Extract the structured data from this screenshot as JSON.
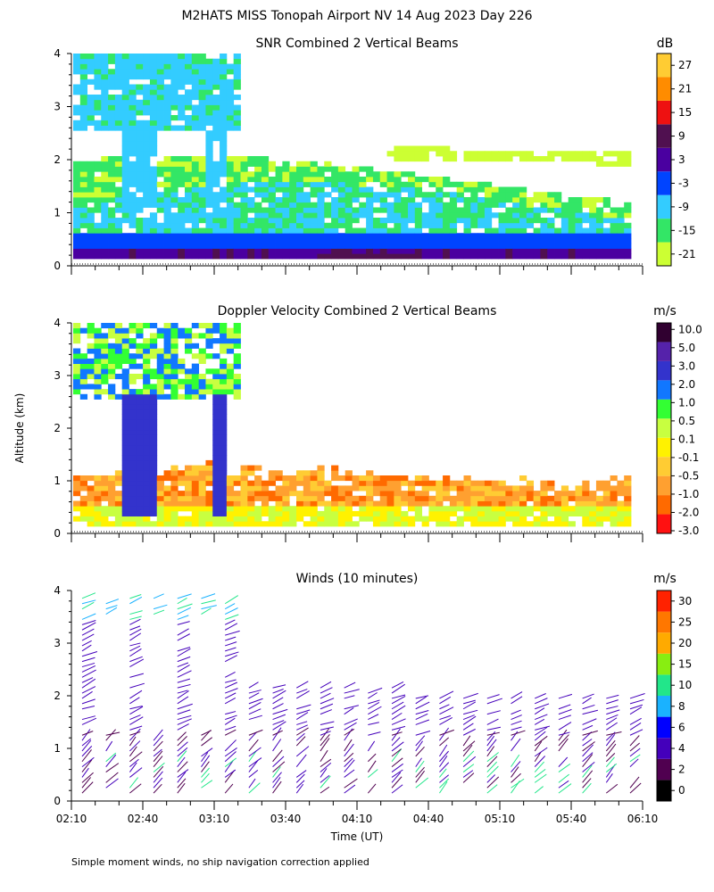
{
  "title": "M2HATS MISS Tonopah Airport NV  14 Aug 2023 Day 226",
  "ylabel": "Altitude (km)",
  "xlabel": "Time (UT)",
  "footnote": "Simple moment winds, no ship navigation correction applied",
  "colors": {
    "background": "#ffffff",
    "axis": "#000000",
    "snr_scale": [
      "#ccff33",
      "#33e666",
      "#33ccff",
      "#0044ff",
      "#4a00a0",
      "#501050",
      "#ee1111",
      "#ff8c00",
      "#ffcc33"
    ],
    "doppler_scale": [
      "#ff1111",
      "#ff6a00",
      "#ffa030",
      "#ffcc33",
      "#fff200",
      "#c8ff40",
      "#33ff33",
      "#1177ff",
      "#3333cc",
      "#5522aa",
      "#300030"
    ],
    "wind_scale": [
      "#000000",
      "#500050",
      "#4400bb",
      "#0000ff",
      "#1ab2ff",
      "#22e68a",
      "#88ee11",
      "#ffaa00",
      "#ff7700",
      "#ff2200"
    ]
  },
  "chart_data": [
    {
      "type": "heatmap",
      "title": "SNR Combined 2 Vertical Beams",
      "ylim": [
        0,
        4
      ],
      "yticks": [
        "0",
        "1",
        "2",
        "3",
        "4"
      ],
      "xlim": [
        "02:10",
        "06:10"
      ],
      "colorbar": {
        "unit": "dB",
        "labels": [
          "-21",
          "-15",
          "-9",
          "-3",
          "3",
          "9",
          "15",
          "21",
          "27"
        ]
      }
    },
    {
      "type": "heatmap",
      "title": "Doppler Velocity Combined 2 Vertical Beams",
      "ylim": [
        0,
        4
      ],
      "yticks": [
        "0",
        "1",
        "2",
        "3",
        "4"
      ],
      "xlim": [
        "02:10",
        "06:10"
      ],
      "colorbar": {
        "unit": "m/s",
        "labels": [
          "-3.0",
          "-2.0",
          "-1.0",
          "-0.5",
          "-0.1",
          "0.1",
          "0.5",
          "1.0",
          "2.0",
          "3.0",
          "5.0",
          "10.0"
        ]
      }
    },
    {
      "type": "scatter",
      "title": "Winds (10 minutes)",
      "ylim": [
        0,
        4
      ],
      "yticks": [
        "0",
        "1",
        "2",
        "3",
        "4"
      ],
      "xticks": [
        "02:10",
        "02:40",
        "03:10",
        "03:40",
        "04:10",
        "04:40",
        "05:10",
        "05:40",
        "06:10"
      ],
      "colorbar": {
        "unit": "m/s",
        "labels": [
          "0",
          "2",
          "4",
          "6",
          "8",
          "10",
          "15",
          "20",
          "25",
          "30"
        ]
      }
    }
  ]
}
